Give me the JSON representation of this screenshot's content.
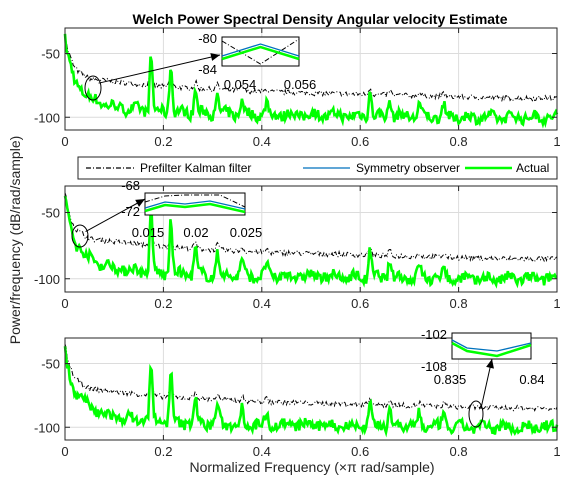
{
  "chart_data": {
    "type": "line",
    "title": "Welch Power Spectral Density Angular velocity Estimate",
    "xlabel": "Normalized Frequency  (×π rad/sample)",
    "ylabel": "Power/frequency (dB/rad/sample)",
    "xlim": [
      0,
      1
    ],
    "ylim": [
      -110,
      -30
    ],
    "xticks": [
      "0",
      "0.2",
      "0.4",
      "0.6",
      "0.8",
      "1"
    ],
    "yticks": [
      "-50",
      "-100"
    ],
    "grid": true,
    "legend": {
      "placement": "between-top-and-middle",
      "entries": [
        {
          "label": "Prefilter Kalman filter",
          "color": "#000000",
          "style": "dash-dot"
        },
        {
          "label": "Symmetry observer",
          "color": "#0072BD",
          "style": "solid"
        },
        {
          "label": "Actual",
          "color": "#00FF00",
          "style": "solid-thick"
        }
      ]
    },
    "series": [
      {
        "name": "Prefilter Kalman filter",
        "points": [
          [
            0.0,
            -33
          ],
          [
            0.005,
            -47
          ],
          [
            0.02,
            -62
          ],
          [
            0.05,
            -70
          ],
          [
            0.1,
            -72
          ],
          [
            0.2,
            -76
          ],
          [
            0.3,
            -78
          ],
          [
            0.4,
            -80
          ],
          [
            0.5,
            -81
          ],
          [
            0.6,
            -82
          ],
          [
            0.7,
            -83
          ],
          [
            0.8,
            -84
          ],
          [
            0.9,
            -85
          ],
          [
            1.0,
            -85
          ]
        ]
      },
      {
        "name": "Symmetry observer",
        "points": [
          [
            0.0,
            -38
          ],
          [
            0.005,
            -52
          ],
          [
            0.02,
            -72
          ],
          [
            0.05,
            -85
          ],
          [
            0.1,
            -92
          ],
          [
            0.2,
            -96
          ],
          [
            0.3,
            -97
          ],
          [
            0.4,
            -98
          ],
          [
            0.5,
            -98
          ],
          [
            0.6,
            -99
          ],
          [
            0.7,
            -99
          ],
          [
            0.8,
            -100
          ],
          [
            0.9,
            -100
          ],
          [
            1.0,
            -100
          ]
        ]
      },
      {
        "name": "Actual",
        "points": [
          [
            0.0,
            -38
          ],
          [
            0.005,
            -52
          ],
          [
            0.02,
            -72
          ],
          [
            0.05,
            -85
          ],
          [
            0.1,
            -92
          ],
          [
            0.2,
            -96
          ],
          [
            0.3,
            -97
          ],
          [
            0.4,
            -98
          ],
          [
            0.5,
            -98
          ],
          [
            0.6,
            -99
          ],
          [
            0.7,
            -99
          ],
          [
            0.8,
            -100
          ],
          [
            0.9,
            -100
          ],
          [
            1.0,
            -100
          ]
        ]
      }
    ],
    "peaks": [
      [
        0.175,
        -51
      ],
      [
        0.215,
        -57
      ],
      [
        0.265,
        -77
      ],
      [
        0.31,
        -82
      ],
      [
        0.36,
        -85
      ],
      [
        0.41,
        -88
      ],
      [
        0.62,
        -78
      ],
      [
        0.66,
        -85
      ],
      [
        0.72,
        -89
      ],
      [
        0.77,
        -89
      ]
    ],
    "subplots": [
      {
        "yticks": [
          "-50",
          "-100"
        ]
      },
      {
        "yticks": [
          "-50",
          "-100"
        ]
      },
      {
        "yticks": [
          "-50",
          "-100"
        ]
      }
    ],
    "insets": [
      {
        "subplot": 1,
        "ytick_labels": [
          "-80",
          "-84"
        ],
        "xtick_labels": [
          "0.054",
          "0.056"
        ]
      },
      {
        "subplot": 2,
        "ytick_labels": [
          "-68",
          "-72"
        ],
        "xtick_labels": [
          "0.015",
          "0.02",
          "0.025"
        ]
      },
      {
        "subplot": 3,
        "ytick_labels": [
          "-102",
          "-108"
        ],
        "xtick_labels": [
          "0.835",
          "0.84"
        ]
      }
    ]
  }
}
